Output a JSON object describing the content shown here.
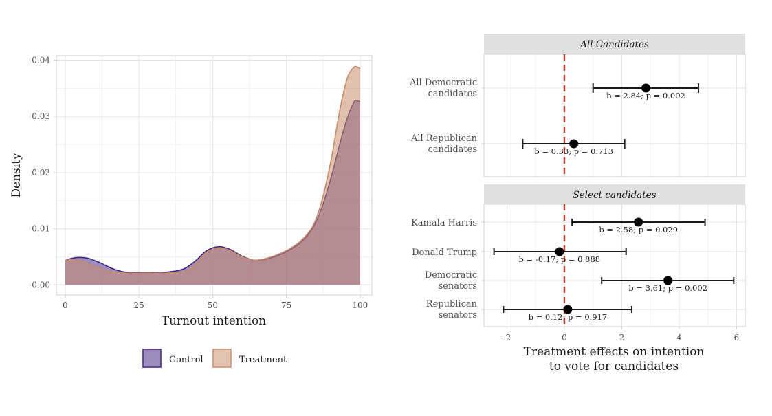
{
  "chart_data": [
    {
      "type": "area",
      "title": "",
      "xlabel": "Turnout intention",
      "ylabel": "Density",
      "xlim": [
        -3,
        104
      ],
      "ylim": [
        -0.0018,
        0.0408
      ],
      "xticks": [
        "0",
        "25",
        "50",
        "75",
        "100"
      ],
      "yticks": [
        "0.00",
        "0.01",
        "0.02",
        "0.03",
        "0.04"
      ],
      "grid": true,
      "legend": {
        "position": "bottom",
        "entries": [
          "Control",
          "Treatment"
        ]
      },
      "colors": {
        "Control": "#5b3f96",
        "Treatment": "#c98c6a",
        "overlap": "#a98385"
      },
      "series": [
        {
          "name": "Control",
          "x": [
            0,
            2,
            5,
            8,
            12,
            16,
            20,
            25,
            30,
            35,
            40,
            44,
            48,
            52,
            56,
            60,
            64,
            68,
            72,
            76,
            80,
            84,
            87,
            90,
            92,
            94,
            96,
            98,
            99,
            100
          ],
          "y": [
            0.0043,
            0.0047,
            0.0049,
            0.0047,
            0.0039,
            0.0029,
            0.0023,
            0.0022,
            0.0022,
            0.0023,
            0.0028,
            0.0042,
            0.0061,
            0.0068,
            0.0063,
            0.0051,
            0.0044,
            0.0046,
            0.0052,
            0.0062,
            0.0076,
            0.0102,
            0.0137,
            0.0188,
            0.0228,
            0.0268,
            0.0302,
            0.0326,
            0.0328,
            0.0326
          ]
        },
        {
          "name": "Treatment",
          "x": [
            0,
            2,
            5,
            8,
            12,
            16,
            20,
            25,
            30,
            35,
            40,
            44,
            48,
            52,
            56,
            60,
            64,
            68,
            72,
            76,
            80,
            84,
            87,
            90,
            92,
            94,
            96,
            98,
            99,
            100
          ],
          "y": [
            0.0043,
            0.0045,
            0.0043,
            0.0037,
            0.0029,
            0.0023,
            0.0021,
            0.0021,
            0.0021,
            0.0021,
            0.0023,
            0.0036,
            0.0058,
            0.0066,
            0.0061,
            0.005,
            0.0044,
            0.0047,
            0.0054,
            0.0064,
            0.0079,
            0.0105,
            0.0149,
            0.0218,
            0.0278,
            0.0334,
            0.0373,
            0.0388,
            0.0388,
            0.0385
          ]
        }
      ]
    },
    {
      "type": "scatter",
      "subtype": "coefficient-plot",
      "xlabel": "Treatment effects on intention\nto vote for candidates",
      "xlabel_lines": [
        "Treatment effects on intention",
        "to vote for candidates"
      ],
      "xlim": [
        -2.8,
        6.3
      ],
      "xticks": [
        "-2",
        "0",
        "2",
        "4",
        "6"
      ],
      "reference_line": {
        "x": 0,
        "style": "dashed",
        "color": "#c0392b"
      },
      "grid": true,
      "panels": [
        {
          "title": "All Candidates",
          "rows": [
            {
              "label_lines": [
                "All Democratic",
                "candidates"
              ],
              "estimate": 2.84,
              "ci_low": 1.0,
              "ci_high": 4.67,
              "annotation": "b = 2.84; p = 0.002"
            },
            {
              "label_lines": [
                "All Republican",
                "candidates"
              ],
              "estimate": 0.33,
              "ci_low": -1.45,
              "ci_high": 2.1,
              "annotation": "b = 0.33; p = 0.713"
            }
          ]
        },
        {
          "title": "Select candidates",
          "rows": [
            {
              "label_lines": [
                "Kamala Harris"
              ],
              "estimate": 2.58,
              "ci_low": 0.27,
              "ci_high": 4.9,
              "annotation": "b = 2.58; p = 0.029"
            },
            {
              "label_lines": [
                "Donald Trump"
              ],
              "estimate": -0.17,
              "ci_low": -2.45,
              "ci_high": 2.15,
              "annotation": "b = -0.17; p = 0.888"
            },
            {
              "label_lines": [
                "Democratic",
                "senators"
              ],
              "estimate": 3.61,
              "ci_low": 1.3,
              "ci_high": 5.9,
              "annotation": "b = 3.61; p = 0.002"
            },
            {
              "label_lines": [
                "Republican",
                "senators"
              ],
              "estimate": 0.12,
              "ci_low": -2.12,
              "ci_high": 2.35,
              "annotation": "b = 0.12; p = 0.917"
            }
          ]
        }
      ]
    }
  ]
}
